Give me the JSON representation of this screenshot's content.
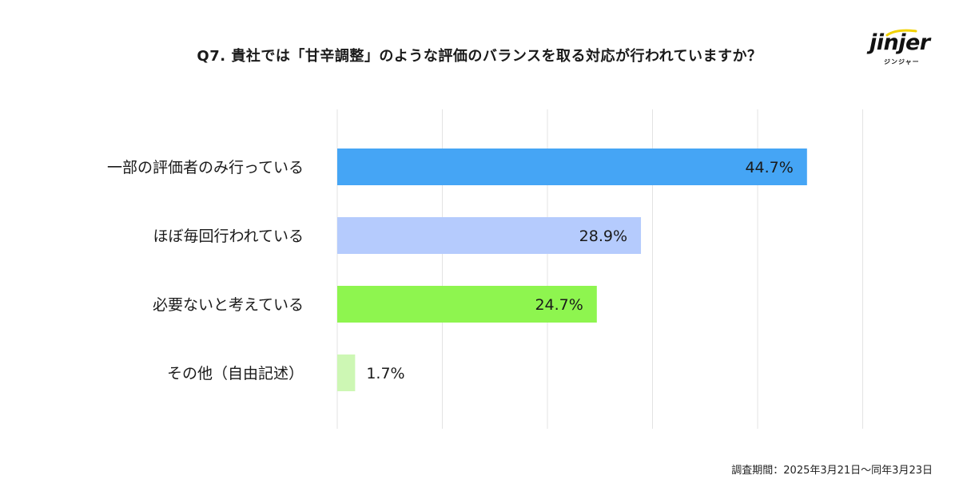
{
  "title": "Q7. 貴社では「甘辛調整」のような評価のバランスを取る対応が行われていますか？",
  "logo": {
    "word": "jinjer",
    "kana": "ジンジャー"
  },
  "footnote": "調査期間：2025年3月21日～同年3月23日",
  "colors": {
    "bar1": "#45a5f5",
    "bar2": "#b5cbfd",
    "bar3": "#8ef54f",
    "bar4": "#cdf7b4",
    "grid": "#e3e3e3",
    "logo_accent": "#f2d200"
  },
  "chart_data": {
    "type": "bar",
    "orientation": "horizontal",
    "categories": [
      "一部の評価者のみ行っている",
      "ほぼ毎回行われている",
      "必要ないと考えている",
      "その他（自由記述）"
    ],
    "values": [
      44.7,
      28.9,
      24.7,
      1.7
    ],
    "value_labels": [
      "44.7%",
      "28.9%",
      "24.7%",
      "1.7%"
    ],
    "xlim": [
      0,
      50
    ],
    "grid": true,
    "legend": "none"
  }
}
